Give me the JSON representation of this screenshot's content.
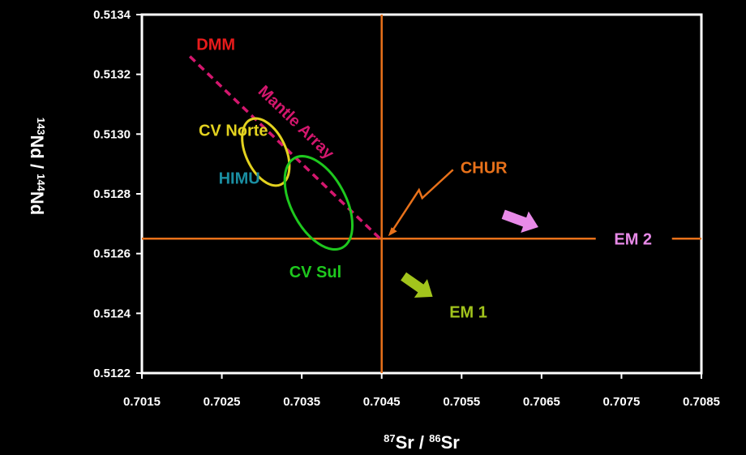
{
  "chart_data": {
    "type": "scatter",
    "xlabel": {
      "sup1": "87",
      "main1": "Sr / ",
      "sup2": "86",
      "main2": "Sr"
    },
    "ylabel": {
      "sup1": "143",
      "main1": "Nd / ",
      "sup2": "144",
      "main2": "Nd"
    },
    "xlim": [
      0.7015,
      0.7085
    ],
    "ylim": [
      0.5122,
      0.5134
    ],
    "x_ticks": [
      "0.7015",
      "0.7025",
      "0.7035",
      "0.7045",
      "0.7055",
      "0.7065",
      "0.7075",
      "0.7085"
    ],
    "y_ticks": [
      "0.5122",
      "0.5124",
      "0.5126",
      "0.5128",
      "0.5130",
      "0.5132",
      "0.5134"
    ],
    "reference_lines": [
      {
        "orientation": "vertical",
        "x": 0.7045,
        "color": "#e8711a"
      },
      {
        "orientation": "horizontal",
        "y": 0.51265,
        "color": "#e8711a"
      }
    ],
    "mantle_array": {
      "label": "Mantle Array",
      "from": [
        0.7021,
        0.51326
      ],
      "to": [
        0.70448,
        0.51265
      ],
      "color": "#d4176e"
    },
    "fields": [
      {
        "label": "CV Norte",
        "color": "#e3d21f",
        "cx": 0.70305,
        "cy": 0.51294,
        "rx": 0.00025,
        "ry": 0.00012,
        "rot": -25
      },
      {
        "label": "CV Sul",
        "color": "#1ec81e",
        "cx": 0.70371,
        "cy": 0.51277,
        "rx": 0.00034,
        "ry": 0.00017,
        "rot": -28
      }
    ],
    "points": [
      {
        "label": "DMM",
        "color": "#e81b1b",
        "x": 0.7021,
        "y": 0.51326
      },
      {
        "label": "HIMU",
        "color": "#1a8fa3",
        "x": 0.7028,
        "y": 0.51285
      },
      {
        "label": "CHUR",
        "color": "#e8711a",
        "x": 0.7045,
        "y": 0.51265
      },
      {
        "label": "EM 1",
        "color": "#a2c41c",
        "x": 0.7053,
        "y": 0.51241
      },
      {
        "label": "EM 2",
        "color": "#e88ae8",
        "x": 0.7073,
        "y": 0.51265
      }
    ]
  }
}
